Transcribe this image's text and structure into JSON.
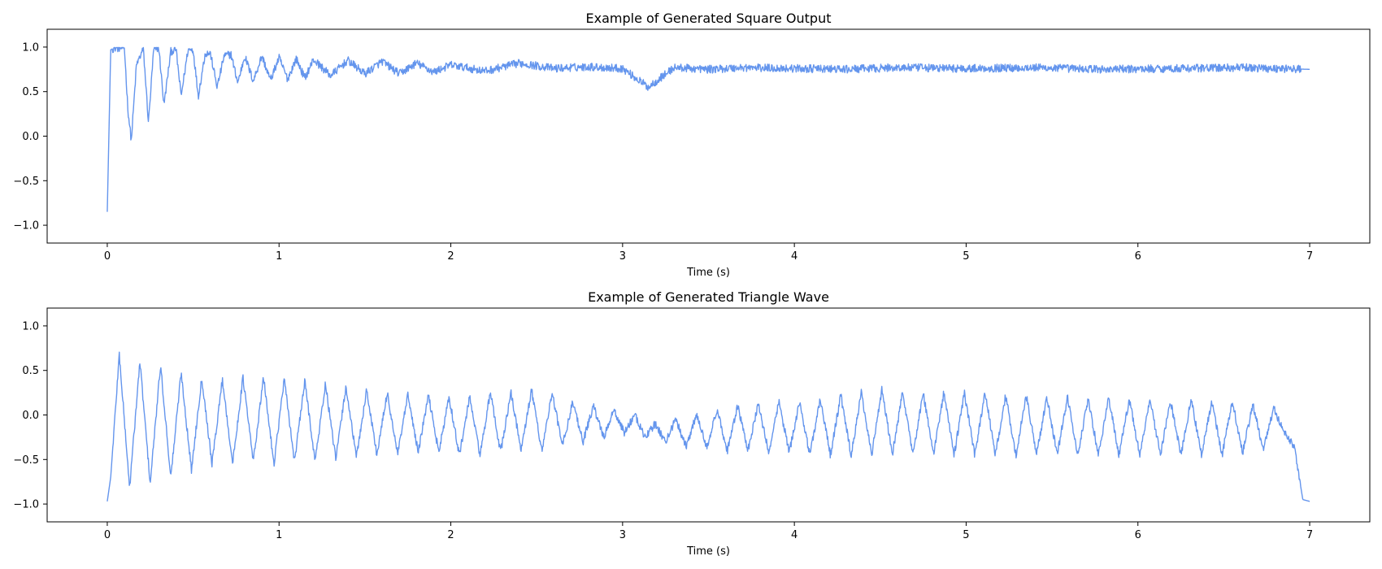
{
  "chart_data": [
    {
      "type": "line",
      "title": "Example of Generated Square Output",
      "xlabel": "Time (s)",
      "ylabel": "",
      "xlim": [
        -0.35,
        7.35
      ],
      "ylim": [
        -1.2,
        1.2
      ],
      "xticks": [
        0,
        1,
        2,
        3,
        4,
        5,
        6,
        7
      ],
      "yticks": [
        -1.0,
        -0.5,
        0.0,
        0.5,
        1.0
      ],
      "grid": false,
      "color": "#6495ed",
      "x": [
        0,
        0.02,
        0.04,
        0.07,
        0.1,
        0.12,
        0.14,
        0.17,
        0.21,
        0.24,
        0.27,
        0.3,
        0.33,
        0.37,
        0.4,
        0.43,
        0.47,
        0.5,
        0.53,
        0.57,
        0.6,
        0.64,
        0.68,
        0.72,
        0.76,
        0.8,
        0.85,
        0.9,
        0.95,
        1.0,
        1.05,
        1.1,
        1.15,
        1.2,
        1.3,
        1.4,
        1.5,
        1.6,
        1.7,
        1.8,
        1.9,
        2.0,
        2.2,
        2.4,
        2.6,
        2.8,
        3.0,
        3.15,
        3.3,
        3.5,
        3.7,
        4.0,
        4.3,
        4.6,
        5.0,
        5.4,
        5.8,
        6.2,
        6.6,
        7.0
      ],
      "y": [
        -0.85,
        0.97,
        0.99,
        0.99,
        0.99,
        0.3,
        -0.05,
        0.8,
        0.98,
        0.15,
        0.97,
        0.99,
        0.35,
        0.95,
        0.98,
        0.45,
        0.97,
        0.97,
        0.45,
        0.93,
        0.93,
        0.55,
        0.9,
        0.92,
        0.6,
        0.9,
        0.62,
        0.9,
        0.63,
        0.88,
        0.64,
        0.87,
        0.65,
        0.86,
        0.68,
        0.85,
        0.7,
        0.84,
        0.7,
        0.82,
        0.72,
        0.8,
        0.73,
        0.82,
        0.76,
        0.78,
        0.76,
        0.55,
        0.77,
        0.75,
        0.77,
        0.76,
        0.75,
        0.77,
        0.76,
        0.77,
        0.75,
        0.76,
        0.77,
        0.75
      ]
    },
    {
      "type": "line",
      "title": "Example of Generated Triangle Wave",
      "xlabel": "Time (s)",
      "ylabel": "",
      "xlim": [
        -0.35,
        7.35
      ],
      "ylim": [
        -1.2,
        1.2
      ],
      "xticks": [
        0,
        1,
        2,
        3,
        4,
        5,
        6,
        7
      ],
      "yticks": [
        -1.0,
        -0.5,
        0.0,
        0.5,
        1.0
      ],
      "grid": false,
      "color": "#6495ed",
      "x": [
        0,
        0.02,
        0.07,
        0.13,
        0.19,
        0.25,
        0.31,
        0.37,
        0.43,
        0.49,
        0.55,
        0.61,
        0.67,
        0.73,
        0.79,
        0.85,
        0.91,
        0.97,
        1.03,
        1.09,
        1.15,
        1.21,
        1.27,
        1.33,
        1.39,
        1.45,
        1.51,
        1.57,
        1.63,
        1.69,
        1.75,
        1.81,
        1.87,
        1.93,
        1.99,
        2.05,
        2.11,
        2.17,
        2.23,
        2.29,
        2.35,
        2.41,
        2.47,
        2.53,
        2.59,
        2.65,
        2.71,
        2.77,
        2.83,
        2.89,
        2.95,
        3.01,
        3.07,
        3.13,
        3.19,
        3.25,
        3.31,
        3.37,
        3.43,
        3.49,
        3.55,
        3.61,
        3.67,
        3.73,
        3.79,
        3.85,
        3.91,
        3.97,
        4.03,
        4.09,
        4.15,
        4.21,
        4.27,
        4.33,
        4.39,
        4.45,
        4.51,
        4.57,
        4.63,
        4.69,
        4.75,
        4.81,
        4.87,
        4.93,
        4.99,
        5.05,
        5.11,
        5.17,
        5.23,
        5.29,
        5.35,
        5.41,
        5.47,
        5.53,
        5.59,
        5.65,
        5.71,
        5.77,
        5.83,
        5.89,
        5.95,
        6.01,
        6.07,
        6.13,
        6.19,
        6.25,
        6.31,
        6.37,
        6.43,
        6.49,
        6.55,
        6.61,
        6.67,
        6.73,
        6.79,
        6.85,
        6.91,
        6.96,
        7.0
      ],
      "y": [
        -0.97,
        -0.7,
        0.68,
        -0.82,
        0.6,
        -0.77,
        0.56,
        -0.7,
        0.48,
        -0.62,
        0.42,
        -0.55,
        0.4,
        -0.55,
        0.42,
        -0.52,
        0.42,
        -0.55,
        0.4,
        -0.52,
        0.38,
        -0.52,
        0.35,
        -0.5,
        0.32,
        -0.48,
        0.28,
        -0.45,
        0.25,
        -0.45,
        0.22,
        -0.42,
        0.22,
        -0.42,
        0.2,
        -0.45,
        0.2,
        -0.45,
        0.25,
        -0.42,
        0.25,
        -0.4,
        0.28,
        -0.4,
        0.25,
        -0.35,
        0.15,
        -0.3,
        0.1,
        -0.25,
        0.05,
        -0.2,
        0.0,
        -0.25,
        -0.1,
        -0.3,
        -0.05,
        -0.35,
        0.0,
        -0.35,
        0.05,
        -0.4,
        0.1,
        -0.4,
        0.12,
        -0.42,
        0.15,
        -0.42,
        0.15,
        -0.45,
        0.18,
        -0.45,
        0.22,
        -0.45,
        0.25,
        -0.45,
        0.3,
        -0.45,
        0.25,
        -0.45,
        0.25,
        -0.45,
        0.25,
        -0.45,
        0.25,
        -0.45,
        0.25,
        -0.45,
        0.22,
        -0.45,
        0.22,
        -0.45,
        0.2,
        -0.45,
        0.2,
        -0.45,
        0.18,
        -0.45,
        0.2,
        -0.45,
        0.18,
        -0.45,
        0.18,
        -0.45,
        0.15,
        -0.45,
        0.18,
        -0.45,
        0.15,
        -0.45,
        0.15,
        -0.42,
        0.12,
        -0.4,
        0.08,
        -0.2,
        -0.35,
        -0.95,
        -0.97
      ]
    }
  ]
}
